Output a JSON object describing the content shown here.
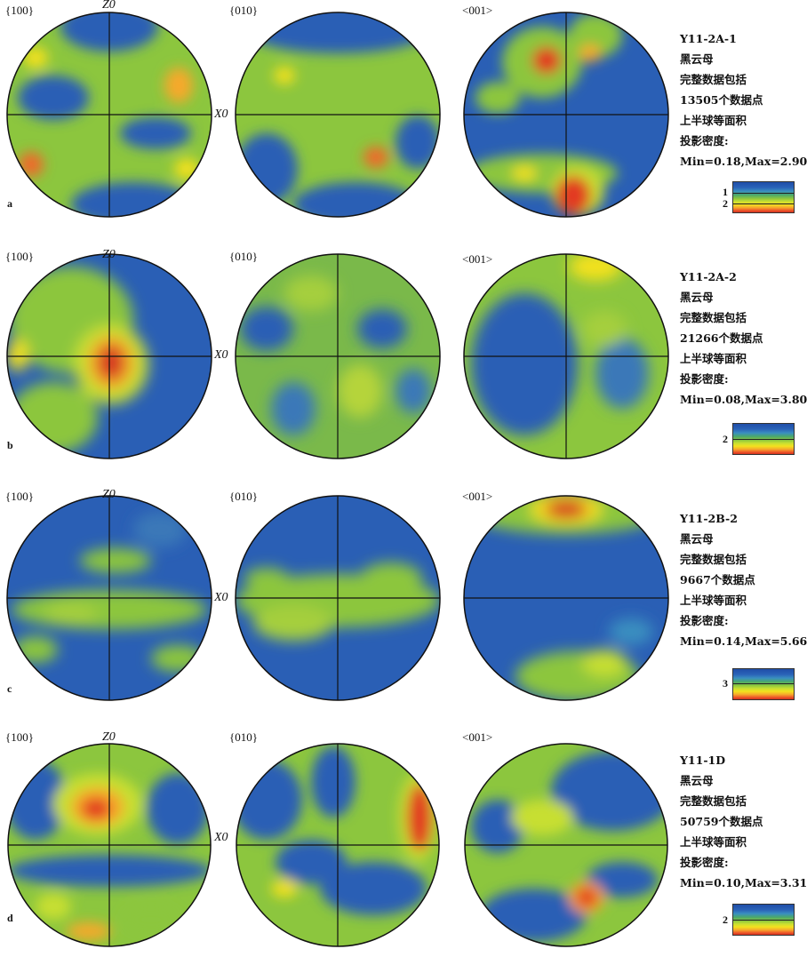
{
  "colors": {
    "low": "#1f4ea8",
    "mid": "#8cc63e",
    "high": "#f3e11e",
    "max": "#d43020",
    "line": "#111111"
  },
  "pole_labels": [
    "{100}",
    "{010}",
    "<001>"
  ],
  "axis_labels": {
    "z": "Z0",
    "x": "X0"
  },
  "rows": [
    {
      "letter": "a",
      "sample": "Y11-2A-1",
      "mineral": "黑云母",
      "data_line1": "完整数据包括",
      "data_line2": "13505个数据点",
      "proj_line1": "上半球等面积",
      "proj_line2": "投影密度:",
      "minmax": "Min=0.18,Max=2.90",
      "scale_ticks": [
        "1",
        "2"
      ]
    },
    {
      "letter": "b",
      "sample": "Y11-2A-2",
      "mineral": "黑云母",
      "data_line1": "完整数据包括",
      "data_line2": "21266个数据点",
      "proj_line1": "上半球等面积",
      "proj_line2": "投影密度:",
      "minmax": "Min=0.08,Max=3.80",
      "scale_ticks": [
        "2"
      ]
    },
    {
      "letter": "c",
      "sample": "Y11-2B-2",
      "mineral": "黑云母",
      "data_line1": "完整数据包括",
      "data_line2": "9667个数据点",
      "proj_line1": "上半球等面积",
      "proj_line2": "投影密度:",
      "minmax": "Min=0.14,Max=5.66",
      "scale_ticks": [
        "3"
      ]
    },
    {
      "letter": "d",
      "sample": "Y11-1D",
      "mineral": "黑云母",
      "data_line1": "完整数据包括",
      "data_line2": "50759个数据点",
      "proj_line1": "上半球等面积",
      "proj_line2": "投影密度:",
      "minmax": "Min=0.10,Max=3.31",
      "scale_ticks": [
        "2"
      ]
    }
  ]
}
